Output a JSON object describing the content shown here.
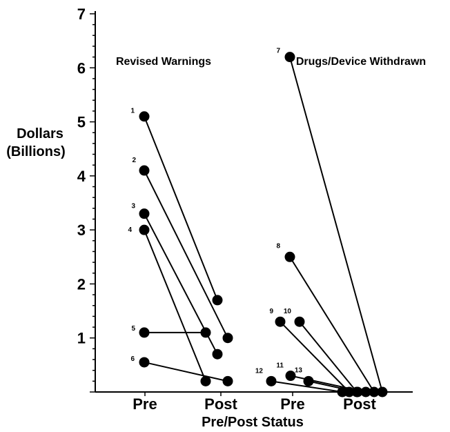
{
  "chart_data": {
    "type": "scatter",
    "xlabel": "Pre/Post Status",
    "ylabel_lines": [
      "Dollars",
      "(Billions)"
    ],
    "ylim": [
      0,
      7
    ],
    "yticks": [
      "1",
      "2",
      "3",
      "4",
      "5",
      "6",
      "7"
    ],
    "x_categories": [
      "Pre",
      "Post",
      "Pre",
      "Post"
    ],
    "panel_labels": [
      "Revised Warnings",
      "Drugs/Device Withdrawn"
    ],
    "series": [
      {
        "label": "1",
        "group": "Revised Warnings",
        "pre": 5.1,
        "post": 1.7
      },
      {
        "label": "2",
        "group": "Revised Warnings",
        "pre": 4.1,
        "post": 1.0
      },
      {
        "label": "3",
        "group": "Revised Warnings",
        "pre": 3.3,
        "post": 0.7
      },
      {
        "label": "4",
        "group": "Revised Warnings",
        "pre": 3.0,
        "post": 0.2
      },
      {
        "label": "5",
        "group": "Revised Warnings",
        "pre": 1.1,
        "post": 1.1
      },
      {
        "label": "6",
        "group": "Revised Warnings",
        "pre": 0.55,
        "post": 0.2
      },
      {
        "label": "7",
        "group": "Drugs/Device Withdrawn",
        "pre": 6.2,
        "post": 0.0
      },
      {
        "label": "8",
        "group": "Drugs/Device Withdrawn",
        "pre": 2.5,
        "post": 0.0
      },
      {
        "label": "9",
        "group": "Drugs/Device Withdrawn",
        "pre": 1.3,
        "post": 0.0
      },
      {
        "label": "10",
        "group": "Drugs/Device Withdrawn",
        "pre": 1.3,
        "post": 0.0
      },
      {
        "label": "11",
        "group": "Drugs/Device Withdrawn",
        "pre": 0.3,
        "post": 0.0
      },
      {
        "label": "12",
        "group": "Drugs/Device Withdrawn",
        "pre": 0.2,
        "post": 0.0
      },
      {
        "label": "13",
        "group": "Drugs/Device Withdrawn",
        "pre": 0.2,
        "post": 0.0
      }
    ],
    "grid": false,
    "marker_color": "#000000"
  }
}
